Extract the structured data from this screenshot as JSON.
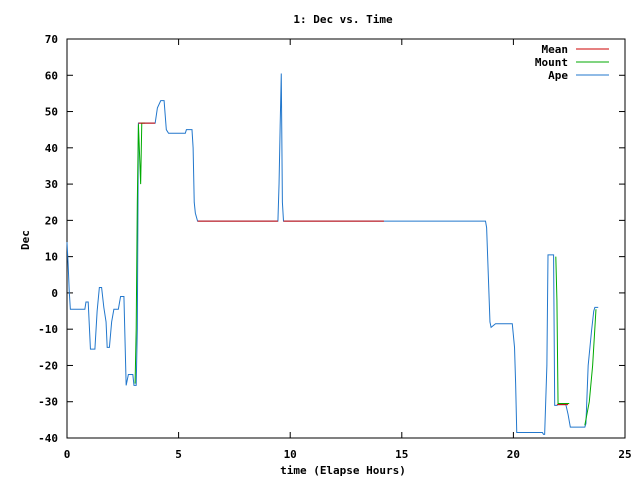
{
  "chart_data": {
    "type": "line",
    "title": "1: Dec vs. Time",
    "xlabel": "time (Elapse Hours)",
    "ylabel": "Dec",
    "xlim": [
      0,
      25
    ],
    "ylim": [
      -40,
      70
    ],
    "xticks": [
      0,
      5,
      10,
      15,
      20,
      25
    ],
    "yticks": [
      -40,
      -30,
      -20,
      -10,
      0,
      10,
      20,
      30,
      40,
      50,
      60,
      70
    ],
    "grid": false,
    "legend_position": "top-right",
    "series": [
      {
        "name": "Mean",
        "color": "#cc0000",
        "segments": [
          [
            [
              3.2,
              46.8
            ],
            [
              3.95,
              46.8
            ]
          ],
          [
            [
              5.85,
              19.8
            ],
            [
              9.45,
              19.8
            ]
          ],
          [
            [
              9.7,
              19.8
            ],
            [
              14.2,
              19.8
            ]
          ],
          [
            [
              21.95,
              -30.8
            ],
            [
              22.45,
              -30.8
            ]
          ]
        ]
      },
      {
        "name": "Mount",
        "color": "#00aa00",
        "segments": [
          [
            [
              3.05,
              -25.0
            ],
            [
              3.1,
              -10.0
            ],
            [
              3.15,
              25.0
            ],
            [
              3.2,
              46.5
            ],
            [
              3.3,
              30.0
            ],
            [
              3.35,
              46.8
            ],
            [
              3.5,
              46.8
            ]
          ],
          [
            [
              21.9,
              10.0
            ],
            [
              21.95,
              -2.0
            ],
            [
              22.0,
              -30.5
            ],
            [
              22.5,
              -30.5
            ]
          ],
          [
            [
              23.2,
              -36.5
            ],
            [
              23.4,
              -30.0
            ],
            [
              23.55,
              -20.0
            ],
            [
              23.7,
              -4.5
            ]
          ]
        ]
      },
      {
        "name": "Ape",
        "color": "#2277cc",
        "segments": [
          [
            [
              0.0,
              14.0
            ],
            [
              0.05,
              8.0
            ],
            [
              0.1,
              0.5
            ],
            [
              0.15,
              -4.5
            ],
            [
              0.6,
              -4.5
            ],
            [
              0.8,
              -4.5
            ],
            [
              0.85,
              -2.5
            ],
            [
              0.95,
              -2.5
            ],
            [
              1.05,
              -15.5
            ],
            [
              1.25,
              -15.5
            ],
            [
              1.35,
              -5.0
            ],
            [
              1.45,
              1.5
            ],
            [
              1.55,
              1.5
            ],
            [
              1.65,
              -4.0
            ],
            [
              1.75,
              -8.0
            ],
            [
              1.8,
              -15.0
            ],
            [
              1.9,
              -15.0
            ],
            [
              2.0,
              -8.0
            ],
            [
              2.1,
              -4.5
            ],
            [
              2.3,
              -4.5
            ],
            [
              2.4,
              -1.0
            ],
            [
              2.55,
              -1.0
            ],
            [
              2.65,
              -25.5
            ],
            [
              2.75,
              -22.5
            ],
            [
              2.95,
              -22.5
            ],
            [
              3.0,
              -25.5
            ],
            [
              3.1,
              -25.5
            ],
            [
              3.15,
              -10.0
            ],
            [
              3.2,
              46.8
            ],
            [
              3.95,
              46.8
            ],
            [
              4.05,
              51.0
            ],
            [
              4.2,
              53.0
            ],
            [
              4.35,
              53.0
            ],
            [
              4.45,
              45.0
            ],
            [
              4.55,
              44.0
            ],
            [
              5.3,
              44.0
            ],
            [
              5.35,
              45.0
            ],
            [
              5.6,
              45.0
            ],
            [
              5.65,
              40.0
            ],
            [
              5.7,
              25.0
            ],
            [
              5.75,
              22.0
            ],
            [
              5.85,
              19.8
            ],
            [
              9.45,
              19.8
            ],
            [
              9.5,
              30.0
            ],
            [
              9.55,
              46.0
            ],
            [
              9.6,
              60.5
            ],
            [
              9.65,
              25.0
            ],
            [
              9.7,
              19.8
            ],
            [
              18.75,
              19.8
            ],
            [
              18.8,
              18.0
            ],
            [
              18.95,
              -8.0
            ],
            [
              19.0,
              -9.5
            ],
            [
              19.2,
              -8.5
            ],
            [
              19.95,
              -8.5
            ],
            [
              20.05,
              -15.0
            ],
            [
              20.1,
              -25.0
            ],
            [
              20.15,
              -38.5
            ],
            [
              21.3,
              -38.5
            ],
            [
              21.35,
              -39.0
            ],
            [
              21.4,
              -39.0
            ],
            [
              21.5,
              -20.0
            ],
            [
              21.55,
              10.5
            ],
            [
              21.8,
              10.5
            ],
            [
              21.85,
              -31.0
            ],
            [
              21.95,
              -31.0
            ],
            [
              22.0,
              -30.8
            ],
            [
              22.35,
              -30.8
            ],
            [
              22.45,
              -33.5
            ],
            [
              22.55,
              -37.0
            ],
            [
              23.2,
              -37.0
            ],
            [
              23.25,
              -36.0
            ],
            [
              23.35,
              -20.0
            ],
            [
              23.5,
              -10.5
            ],
            [
              23.6,
              -5.0
            ],
            [
              23.65,
              -4.0
            ],
            [
              23.8,
              -4.0
            ]
          ]
        ]
      }
    ]
  }
}
